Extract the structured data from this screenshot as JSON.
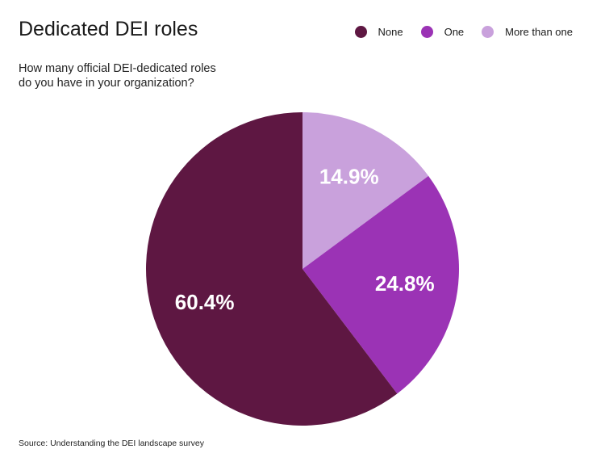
{
  "chart_data": {
    "type": "pie",
    "title": "Dedicated DEI roles",
    "subtitle": "How many official DEI-dedicated roles do you have in your organization?",
    "categories": [
      "More than one",
      "One",
      "None"
    ],
    "values": [
      14.9,
      24.8,
      60.4
    ],
    "labels": [
      "14.9%",
      "24.8%",
      "60.4%"
    ],
    "colors": [
      "#c9a1dc",
      "#9b33b5",
      "#5e1742"
    ],
    "start": "top, clockwise",
    "legend": {
      "placement": "top-right",
      "entries": [
        {
          "name": "None",
          "color": "#5e1742"
        },
        {
          "name": "One",
          "color": "#9b33b5"
        },
        {
          "name": "More than one",
          "color": "#c9a1dc"
        }
      ]
    },
    "source": "Source: Understanding the DEI landscape survey"
  }
}
